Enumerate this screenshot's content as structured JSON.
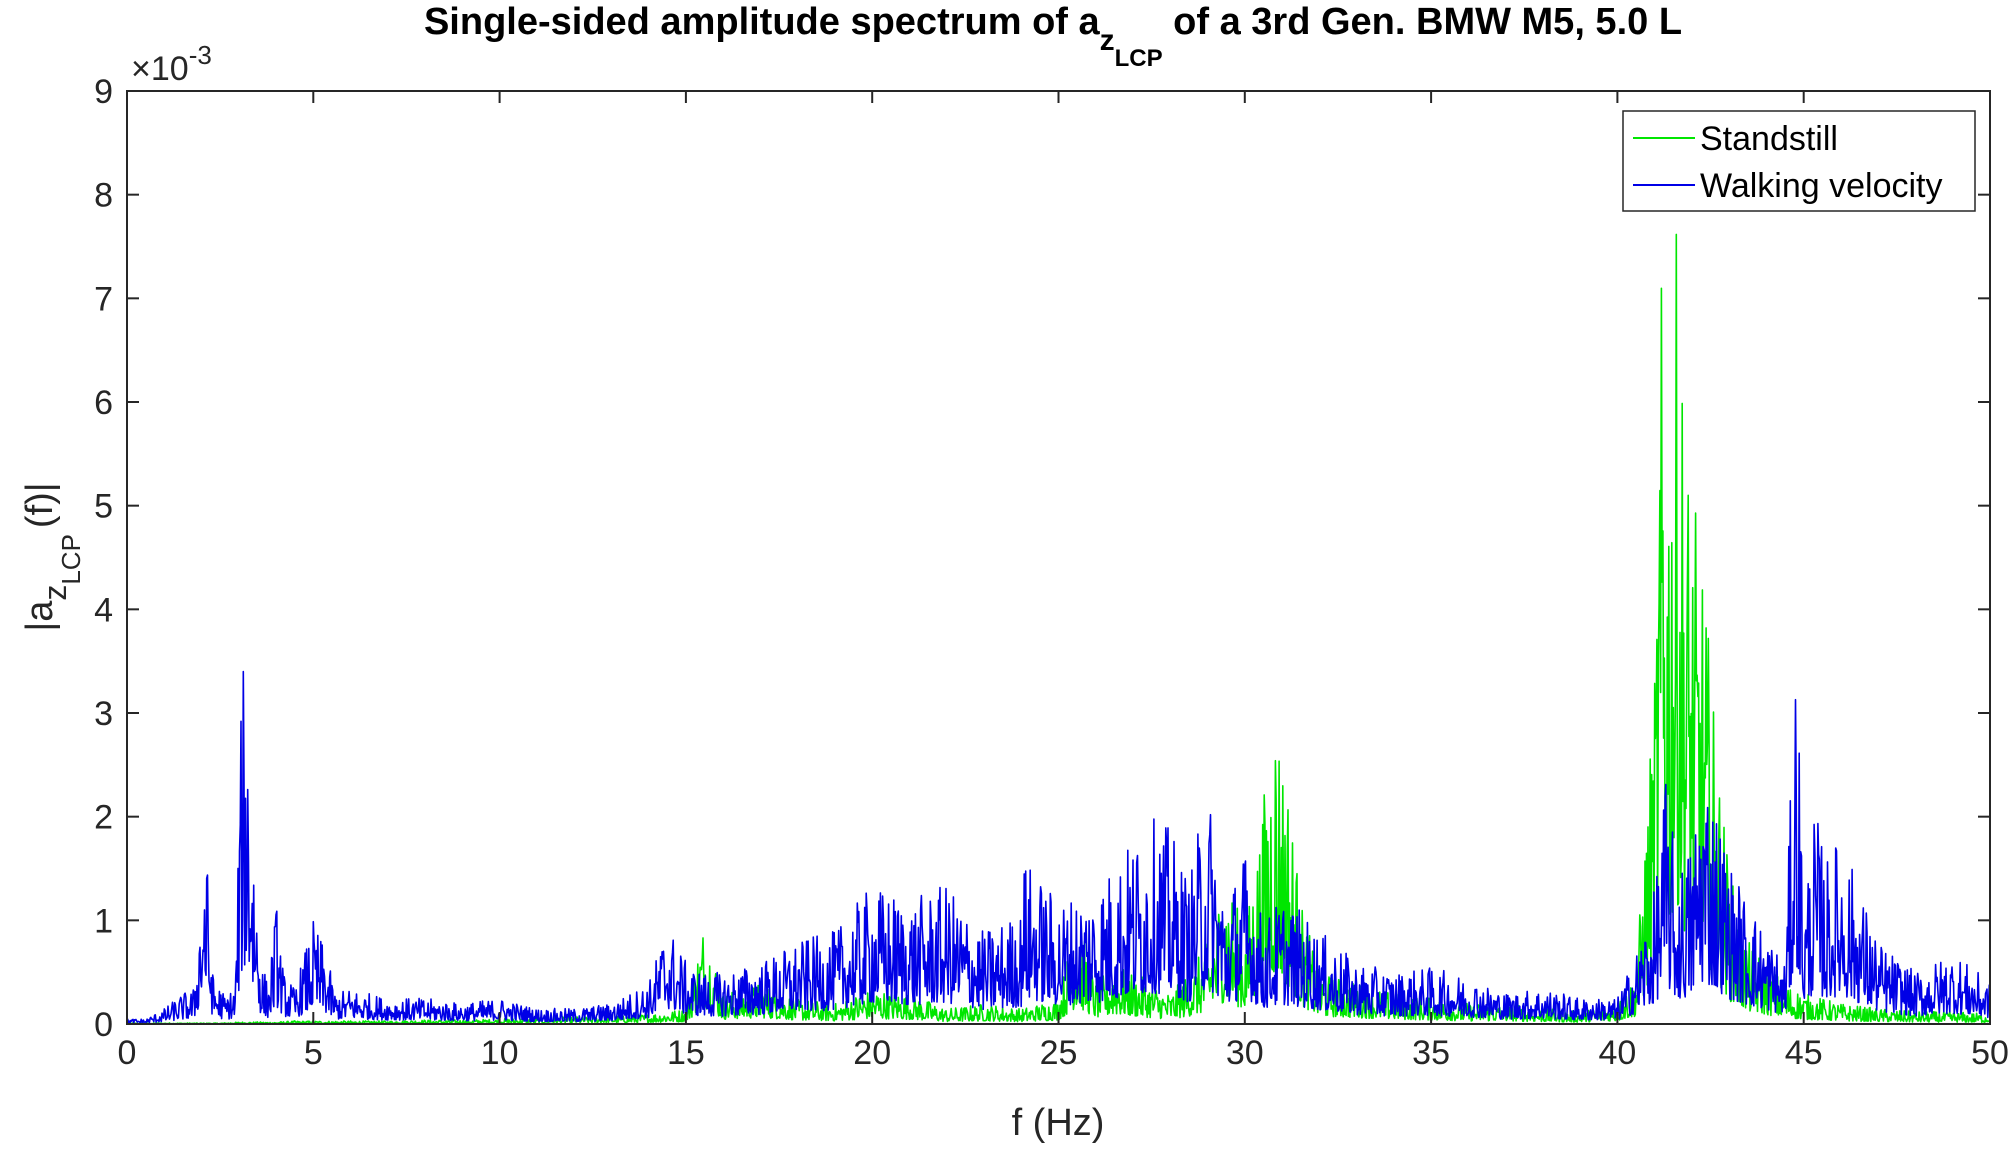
{
  "chart_data": {
    "type": "line",
    "title": {
      "before": "Single-sided amplitude spectrum of a",
      "sub": "z",
      "subsub": "LCP",
      "after": " of a 3rd Gen. BMW M5, 5.0 L"
    },
    "xlabel": "f (Hz)",
    "ylabel": {
      "before": "|a",
      "sub": "z",
      "subsub": "LCP",
      "after": "(f)|"
    },
    "y_exponent": {
      "base": "×10",
      "power": "-3"
    },
    "xlim": [
      0,
      50
    ],
    "ylim": [
      0,
      9
    ],
    "xticks": [
      0,
      5,
      10,
      15,
      20,
      25,
      30,
      35,
      40,
      45,
      50
    ],
    "yticks": [
      0,
      1,
      2,
      3,
      4,
      5,
      6,
      7,
      8,
      9
    ],
    "grid": false,
    "legend_position": "top-right",
    "series": [
      {
        "name": "Standstill",
        "color": "#00e600",
        "x": [
          0,
          0.5,
          1,
          1.5,
          2,
          2.5,
          3,
          3.5,
          4,
          4.5,
          5,
          6,
          7,
          8,
          9,
          10,
          11,
          12,
          13,
          14,
          15,
          15.5,
          16,
          17,
          18,
          19,
          20,
          21,
          22,
          23,
          24,
          25,
          25.5,
          26,
          26.5,
          27,
          27.5,
          28,
          28.5,
          29,
          29.5,
          30,
          30.5,
          30.8,
          31,
          31.2,
          31.5,
          32,
          33,
          34,
          35,
          36,
          37,
          38,
          39,
          40,
          40.5,
          41,
          41.2,
          41.4,
          41.6,
          41.8,
          42,
          42.3,
          42.6,
          43,
          43.5,
          44,
          44.5,
          45,
          46,
          47,
          48,
          49,
          50
        ],
        "y": [
          0.01,
          0.01,
          0.01,
          0.01,
          0.01,
          0.01,
          0.02,
          0.02,
          0.02,
          0.03,
          0.03,
          0.03,
          0.03,
          0.04,
          0.04,
          0.05,
          0.06,
          0.07,
          0.08,
          0.1,
          0.15,
          1.05,
          0.3,
          0.4,
          0.25,
          0.2,
          0.35,
          0.3,
          0.15,
          0.2,
          0.15,
          0.25,
          1.1,
          0.4,
          0.6,
          0.5,
          0.4,
          0.3,
          0.5,
          0.8,
          1.5,
          0.9,
          2.2,
          3.25,
          2.8,
          2.3,
          1.2,
          0.5,
          0.4,
          0.3,
          0.25,
          0.2,
          0.2,
          0.15,
          0.12,
          0.2,
          0.5,
          3.4,
          7.6,
          6.2,
          7.8,
          6.0,
          5.2,
          4.5,
          3.0,
          1.5,
          0.8,
          0.6,
          0.4,
          0.3,
          0.2,
          0.15,
          0.12,
          0.12,
          0.1
        ]
      },
      {
        "name": "Walking velocity",
        "color": "#0000e6",
        "x": [
          0,
          0.5,
          1,
          1.5,
          1.8,
          2.1,
          2.3,
          2.6,
          2.9,
          3.1,
          3.2,
          3.4,
          3.6,
          3.8,
          4,
          4.2,
          4.5,
          5,
          5.3,
          5.6,
          6,
          7,
          8,
          9,
          10,
          11,
          12,
          13,
          14,
          14.5,
          15,
          15.5,
          16,
          17,
          18,
          19,
          20,
          21,
          22,
          23,
          24,
          24,
          25,
          26,
          27,
          27.5,
          28,
          28.5,
          29,
          29.5,
          30,
          30.5,
          31,
          31.5,
          32,
          33,
          34,
          35,
          36,
          37,
          38,
          39,
          40,
          40.5,
          41,
          41.3,
          41.6,
          42,
          42.3,
          42.6,
          43,
          43.5,
          44,
          44.5,
          44.8,
          45,
          45.3,
          45.6,
          46,
          47,
          48,
          49,
          50
        ],
        "y": [
          0.05,
          0.05,
          0.15,
          0.3,
          0.35,
          1.95,
          0.5,
          0.3,
          0.35,
          3.6,
          3.65,
          1.9,
          0.6,
          0.4,
          1.2,
          0.5,
          0.35,
          1.0,
          0.75,
          0.3,
          0.35,
          0.25,
          0.25,
          0.2,
          0.25,
          0.15,
          0.15,
          0.2,
          0.4,
          1.0,
          0.6,
          0.5,
          0.5,
          0.6,
          0.8,
          0.9,
          1.35,
          1.2,
          1.35,
          0.9,
          1.1,
          1.65,
          1.2,
          1.35,
          1.8,
          2.0,
          1.9,
          1.4,
          2.35,
          1.2,
          1.7,
          1.0,
          1.25,
          1.1,
          0.9,
          0.6,
          0.5,
          0.55,
          0.45,
          0.3,
          0.35,
          0.25,
          0.25,
          0.7,
          1.3,
          2.45,
          1.5,
          1.8,
          2.7,
          2.3,
          1.6,
          1.2,
          0.9,
          0.6,
          3.95,
          1.2,
          2.1,
          1.6,
          1.85,
          0.8,
          0.5,
          0.7,
          0.4
        ]
      }
    ]
  }
}
